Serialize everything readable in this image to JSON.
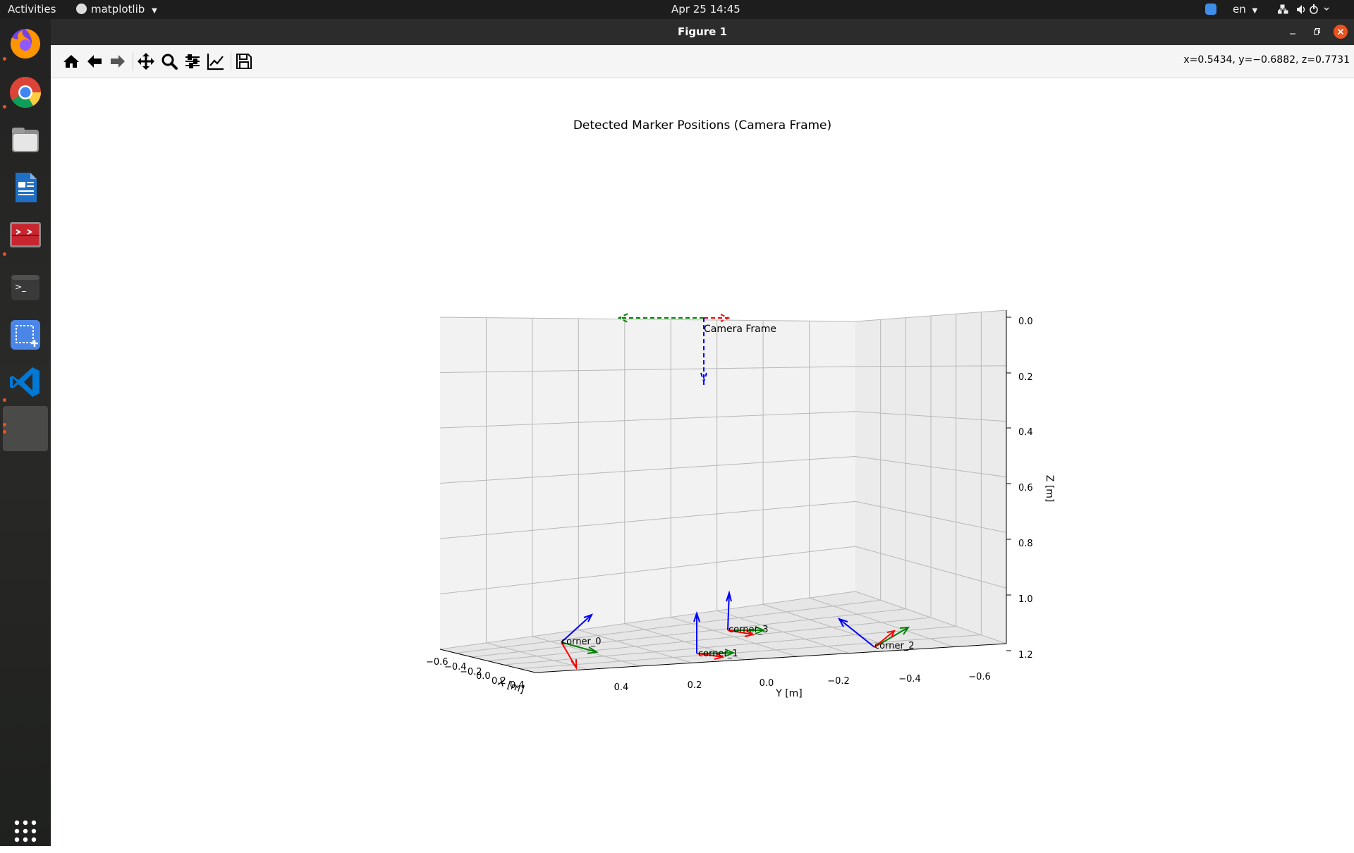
{
  "topbar": {
    "activities": "Activities",
    "app_menu": "matplotlib",
    "datetime": "Apr 25  14:45",
    "language": "en"
  },
  "dock": {
    "apps": [
      "firefox",
      "chrome",
      "files",
      "libreoffice-writer",
      "remote-viewer",
      "terminal",
      "screenshot",
      "vscode",
      "matplotlib-window"
    ],
    "show_apps_icon": "apps-grid-icon"
  },
  "window": {
    "title": "Figure 1",
    "toolbar": {
      "buttons": [
        "home-icon",
        "back-icon",
        "forward-icon",
        "pan-icon",
        "zoom-icon",
        "configure-subplots-icon",
        "edit-axis-icon",
        "save-icon"
      ],
      "coordinates": "x=0.5434, y=−0.6882, z=0.7731"
    }
  },
  "chart_data": {
    "type": "scatter",
    "projection": "3d",
    "title": "Detected Marker Positions (Camera Frame)",
    "xlabel": "X [m]",
    "ylabel": "Y [m]",
    "zlabel": "Z [m]",
    "x_ticks": [
      "−0.6",
      "−0.4",
      "−0.2",
      "0.0",
      "0.2",
      "0.4"
    ],
    "y_ticks": [
      "0.4",
      "0.2",
      "0.0",
      "−0.2",
      "−0.4",
      "−0.6"
    ],
    "z_ticks": [
      "0.0",
      "0.2",
      "0.4",
      "0.6",
      "0.8",
      "1.0",
      "1.2"
    ],
    "z_inverted": true,
    "frames": [
      {
        "label": "Camera Frame",
        "style": "dashed",
        "position_z": 0.0
      },
      {
        "label": "corner_0",
        "style": "solid"
      },
      {
        "label": "corner_1",
        "style": "solid"
      },
      {
        "label": "corner_2",
        "style": "solid"
      },
      {
        "label": "corner_3",
        "style": "solid"
      }
    ],
    "axis_colors": {
      "x": "#ff0000",
      "y": "#008000",
      "z": "#0000ff"
    }
  }
}
